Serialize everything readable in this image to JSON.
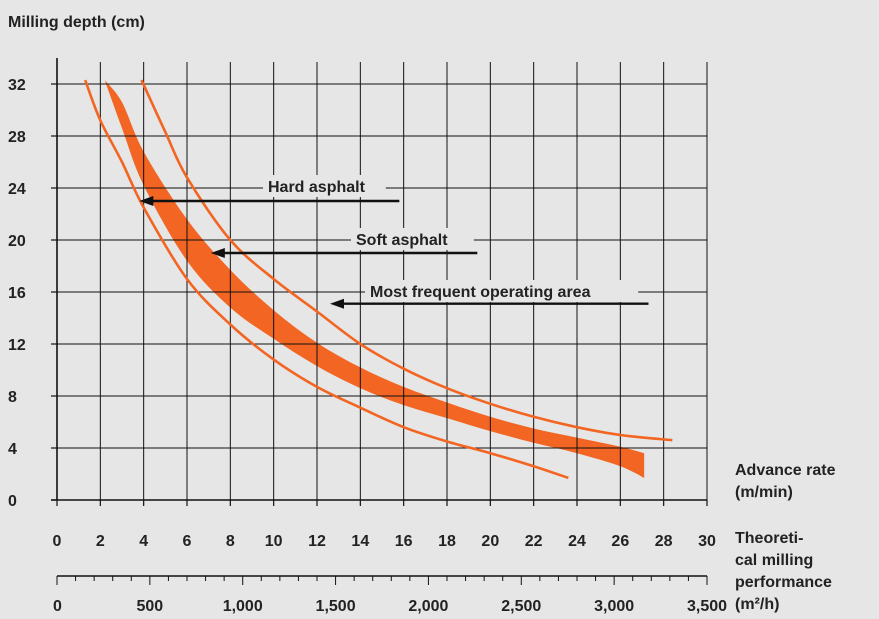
{
  "chart_data": {
    "type": "line",
    "title": "",
    "ylabel": "Milling depth (cm)",
    "xlabel": "Advance rate (m/min)",
    "xlabel_lines": [
      "Advance rate",
      "(m/min)"
    ],
    "x2label": "Theoretical milling performance (m²/h)",
    "x2label_lines": [
      "Theoreti-",
      "cal milling",
      "performance",
      "(m²/h)"
    ],
    "xlim": [
      0,
      30
    ],
    "ylim": [
      0,
      32
    ],
    "x2lim": [
      0,
      3500
    ],
    "x_ticks": [
      "0",
      "2",
      "4",
      "6",
      "8",
      "10",
      "12",
      "14",
      "16",
      "18",
      "20",
      "22",
      "24",
      "26",
      "28",
      "30"
    ],
    "y_ticks": [
      "0",
      "4",
      "8",
      "12",
      "16",
      "20",
      "24",
      "28",
      "32"
    ],
    "x2_ticks": [
      "0",
      "500",
      "1,000",
      "1,500",
      "2,000",
      "2,500",
      "3,000",
      "3,500"
    ],
    "x2_minor_step": 100,
    "grid": true,
    "colors": {
      "curve": "#f26522",
      "band": "#f26522",
      "text": "#222222",
      "grid": "#111111",
      "background": "#e6e6e6"
    },
    "series": [
      {
        "name": "Hard asphalt",
        "kind": "line",
        "x": [
          1.3,
          2,
          3,
          4,
          6,
          8,
          10,
          12,
          14,
          16,
          18,
          20,
          22,
          23.6
        ],
        "y": [
          32.3,
          29.2,
          26.0,
          22.5,
          17.0,
          13.5,
          10.8,
          8.7,
          7.1,
          5.6,
          4.5,
          3.6,
          2.6,
          1.7
        ]
      },
      {
        "name": "Most frequent operating area",
        "kind": "line",
        "x": [
          3.9,
          5,
          6,
          8,
          10,
          12,
          14,
          16,
          18,
          20,
          22,
          24,
          26,
          28.4
        ],
        "y": [
          32.3,
          28.3,
          24.8,
          20.0,
          17.0,
          14.5,
          12.0,
          10.1,
          8.6,
          7.4,
          6.4,
          5.6,
          5.0,
          4.6
        ]
      },
      {
        "name": "Soft asphalt",
        "kind": "band",
        "x": [
          2.2,
          3,
          4,
          6,
          8,
          10,
          12,
          14,
          16,
          18,
          20,
          22,
          24,
          26,
          27.1
        ],
        "y_upper": [
          32.3,
          30.6,
          26.8,
          21.6,
          17.7,
          14.6,
          12.1,
          10.2,
          8.7,
          7.5,
          6.4,
          5.5,
          4.8,
          4.1,
          3.6
        ],
        "y_lower": [
          32.3,
          28.6,
          24.2,
          18.4,
          14.8,
          12.4,
          10.3,
          8.6,
          7.3,
          6.3,
          5.3,
          4.4,
          3.6,
          2.6,
          1.7
        ]
      }
    ],
    "annotations": [
      {
        "text": "Hard asphalt",
        "arrow_from": [
          15.8,
          23.0
        ],
        "arrow_to": [
          3.8,
          23.0
        ]
      },
      {
        "text": "Soft asphalt",
        "arrow_from": [
          19.4,
          19.0
        ],
        "arrow_to": [
          7.1,
          19.0
        ]
      },
      {
        "text": "Most frequent operating area",
        "arrow_from": [
          27.3,
          15.1
        ],
        "arrow_to": [
          12.6,
          15.1
        ]
      }
    ]
  }
}
